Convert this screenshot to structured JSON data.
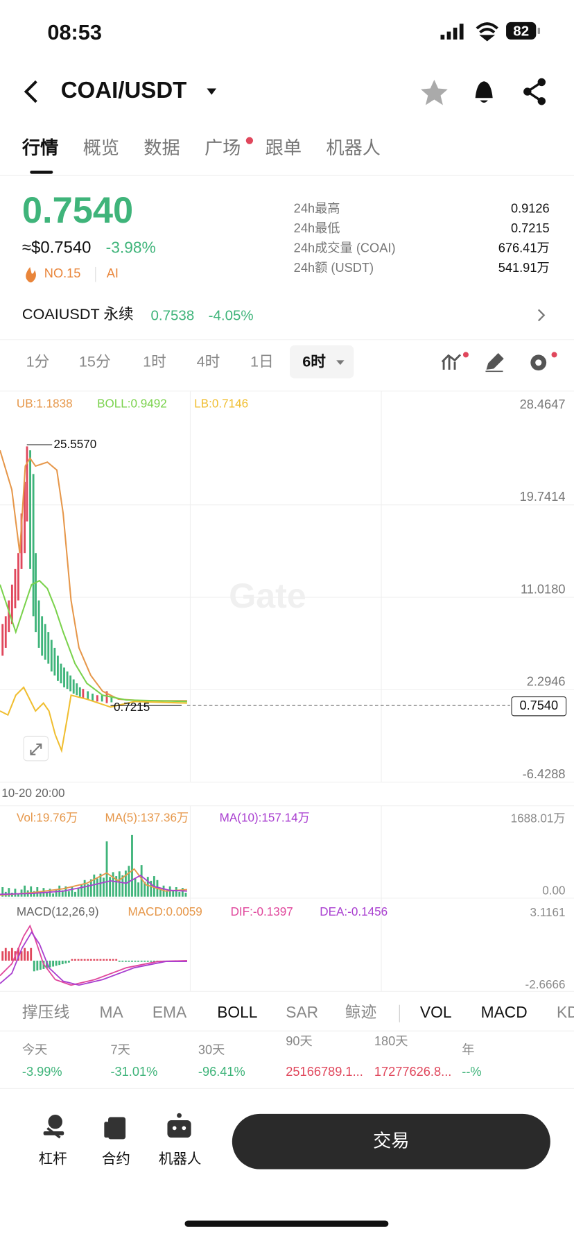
{
  "status": {
    "time": "08:53",
    "battery": "82"
  },
  "header": {
    "pair": "COAI/USDT"
  },
  "tabs": [
    "行情",
    "概览",
    "数据",
    "广场",
    "跟单",
    "机器人"
  ],
  "price": {
    "last": "0.7540",
    "usd": "≈$0.7540",
    "change": "-3.98%",
    "rank": "NO.15",
    "tag": "AI"
  },
  "stats": [
    {
      "label": "24h最高",
      "value": "0.9126"
    },
    {
      "label": "24h最低",
      "value": "0.7215"
    },
    {
      "label": "24h成交量 (COAI)",
      "value": "676.41万"
    },
    {
      "label": "24h额 (USDT)",
      "value": "541.91万"
    }
  ],
  "perp": {
    "name": "COAIUSDT 永续",
    "price": "0.7538",
    "change": "-4.05%"
  },
  "timeframes": [
    "1分",
    "15分",
    "1时",
    "4时",
    "1日",
    "6时"
  ],
  "chart": {
    "ub": "UB:1.1838",
    "boll": "BOLL:0.9492",
    "lb": "LB:0.7146",
    "axis": [
      "28.4647",
      "19.7414",
      "11.0180",
      "2.2946",
      "-6.4288"
    ],
    "high": "25.5570",
    "low": "0.7215",
    "current": "0.7540",
    "date": "10-20 20:00",
    "watermark": "Gate",
    "volume": {
      "vol": "Vol:19.76万",
      "ma5": "MA(5):137.36万",
      "ma10": "MA(10):157.14万",
      "axis": [
        "1688.01万",
        "0.00"
      ]
    },
    "macd": {
      "title": "MACD(12,26,9)",
      "macd": "MACD:0.0059",
      "dif": "DIF:-0.1397",
      "dea": "DEA:-0.1456",
      "axis": [
        "3.1161",
        "-2.6666"
      ]
    }
  },
  "indicators": [
    "撑压线",
    "MA",
    "EMA",
    "BOLL",
    "SAR",
    "鲸迹",
    "VOL",
    "MACD",
    "KD"
  ],
  "periods": [
    {
      "label": "今天",
      "value": "-3.99%"
    },
    {
      "label": "7天",
      "value": "-31.01%"
    },
    {
      "label": "30天",
      "value": "-96.41%"
    },
    {
      "label": "90天",
      "value": "25166789.1..."
    },
    {
      "label": "180天",
      "value": "17277626.8..."
    },
    {
      "label": "年",
      "value": "--%"
    }
  ],
  "bottom": {
    "actions": [
      "杠杆",
      "合约",
      "机器人"
    ],
    "trade": "交易"
  }
}
